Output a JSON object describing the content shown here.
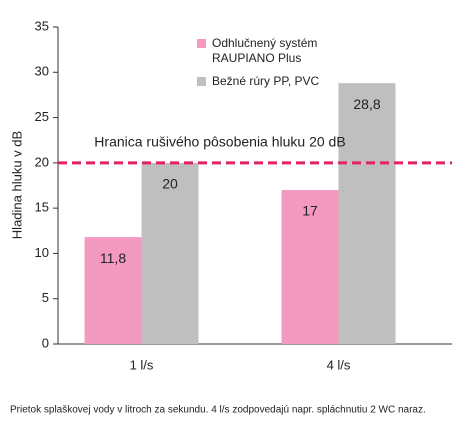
{
  "chart_data": {
    "type": "bar",
    "y_label": "Hladina hluku v dB",
    "categories": [
      "1 l/s",
      "4 l/s"
    ],
    "series": [
      {
        "name": "Odhlučnený systém RAUPIANO Plus",
        "color": "#f49ac1",
        "values": [
          11.8,
          17
        ],
        "value_labels": [
          "11,8",
          "17"
        ]
      },
      {
        "name": "Bežné rúry PP, PVC",
        "color": "#bfbfbf",
        "values": [
          20,
          28.8
        ],
        "value_labels": [
          "20",
          "28,8"
        ]
      }
    ],
    "ylim": [
      0,
      35
    ],
    "yticks": [
      0,
      5,
      10,
      15,
      20,
      25,
      30,
      35
    ],
    "threshold": {
      "value": 20,
      "label": "Hranica rušivého pôsobenia hluku 20 dB",
      "color": "#e0245e"
    },
    "caption": "Prietok splaškovej vody v litroch za sekundu.  4 l/s zodpovedajú napr. spláchnutiu 2 WC naraz."
  }
}
